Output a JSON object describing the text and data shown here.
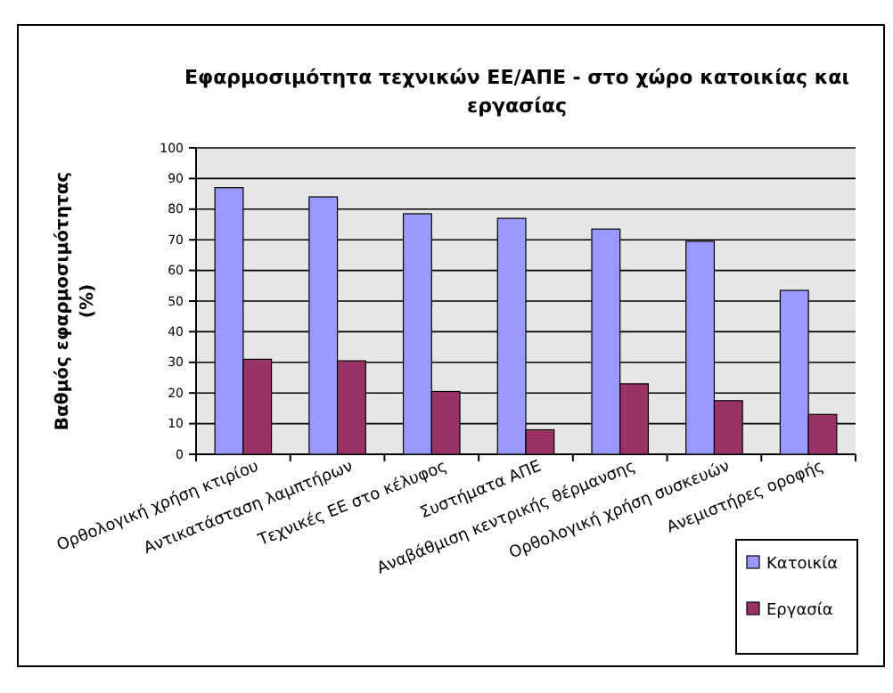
{
  "chart_data": {
    "type": "bar",
    "title": "Εφαρμοσιμότητα τεχνικών ΕΕ/ΑΠΕ - στο χώρο κατοικίας και εργασίας",
    "ylabel": "Βαθμός εφαρμοσιμότητας (%)",
    "categories": [
      "Ορθολογική χρήση κτιρίου",
      "Αντικατάσταση λαμπτήρων",
      "Τεχνικές ΕΕ στο κέλυφος",
      "Συστήματα ΑΠΕ",
      "Αναβάθμιση κεντρικής θέρμανσης",
      "Ορθολογική χρήση συσκευών",
      "Ανεμιστήρες οροφής"
    ],
    "series": [
      {
        "name": "Κατοικία",
        "color": "#9999ff",
        "values": [
          87,
          84,
          78.5,
          77,
          73.5,
          69.5,
          53.5
        ]
      },
      {
        "name": "Εργασία",
        "color": "#993366",
        "values": [
          31,
          30.5,
          20.5,
          8,
          23,
          17.5,
          13
        ]
      }
    ],
    "ylim": [
      0,
      100
    ],
    "yticks": [
      0,
      10,
      20,
      30,
      40,
      50,
      60,
      70,
      80,
      90,
      100
    ],
    "grid": "y",
    "legend": "bottom right"
  }
}
